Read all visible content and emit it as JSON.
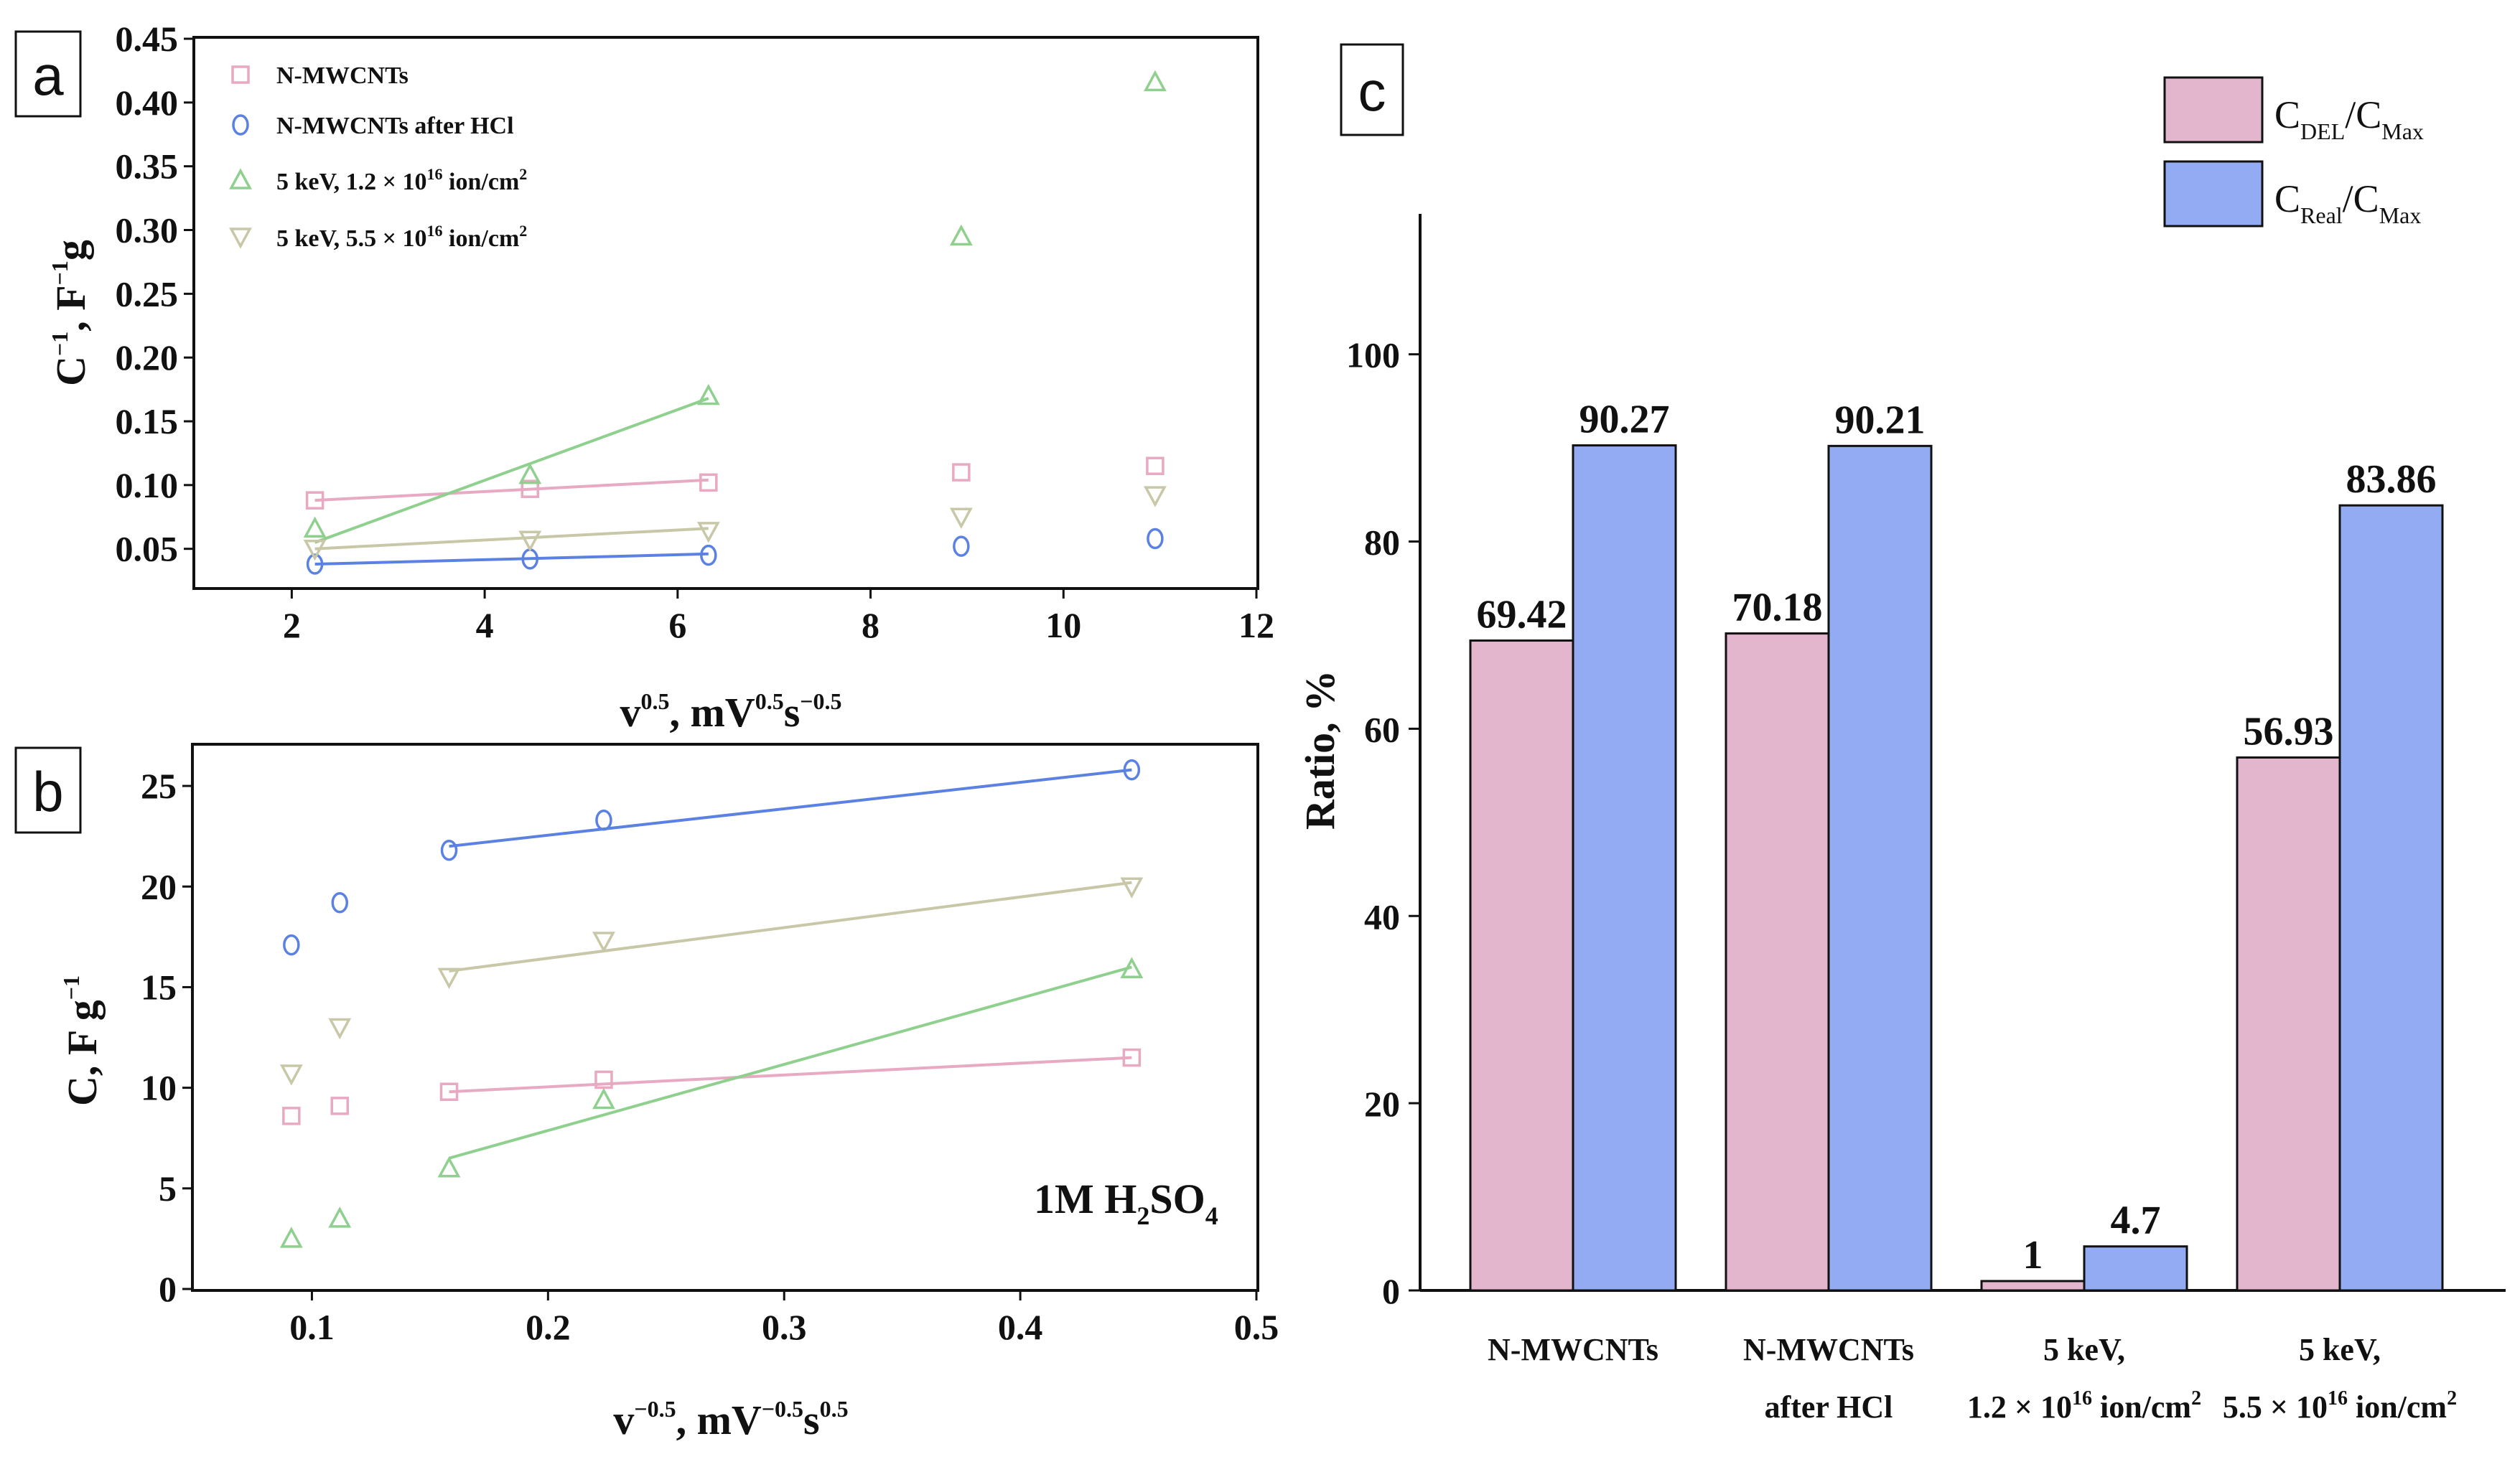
{
  "panels": {
    "a": "a",
    "b": "b",
    "c": "c"
  },
  "colors": {
    "nmwcnt": "#e8a9c2",
    "hcl": "#5b82e3",
    "ion12": "#8fd08f",
    "ion55": "#c8c8a8",
    "bar_del": "#e4b6ce",
    "bar_real": "#92abf2"
  },
  "chart_data": [
    {
      "id": "a",
      "type": "scatter",
      "xlabel": "v^0.5, mV^0.5 s^-0.5",
      "ylabel": "C^-1, F^-1 g",
      "xlim": [
        1,
        12
      ],
      "ylim": [
        0.02,
        0.45
      ],
      "xticks": [
        2,
        4,
        6,
        8,
        10,
        12
      ],
      "xtick_labels": [
        "2",
        "4",
        "6",
        "8",
        "10",
        "12"
      ],
      "yticks": [
        0.05,
        0.1,
        0.15,
        0.2,
        0.25,
        0.3,
        0.35,
        0.4,
        0.45
      ],
      "ytick_labels": [
        "0.05",
        "0.10",
        "0.15",
        "0.20",
        "0.25",
        "0.30",
        "0.35",
        "0.40",
        "0.45"
      ],
      "series": [
        {
          "name": "N-MWCNTs",
          "legend": "N-MWCNTs",
          "color_key": "nmwcnt",
          "marker": "square",
          "points": [
            [
              2.24,
              0.088
            ],
            [
              4.47,
              0.097
            ],
            [
              6.32,
              0.102
            ],
            [
              8.94,
              0.11
            ],
            [
              10.95,
              0.115
            ]
          ],
          "fit": [
            [
              2.24,
              0.088
            ],
            [
              6.32,
              0.104
            ]
          ]
        },
        {
          "name": "N-MWCNTs after HCl",
          "legend": "N-MWCNTs after HCl",
          "color_key": "hcl",
          "marker": "circle",
          "points": [
            [
              2.24,
              0.038
            ],
            [
              4.47,
              0.042
            ],
            [
              6.32,
              0.045
            ],
            [
              8.94,
              0.052
            ],
            [
              10.95,
              0.058
            ]
          ],
          "fit": [
            [
              2.24,
              0.038
            ],
            [
              6.32,
              0.046
            ]
          ]
        },
        {
          "name": "5 keV, 1.2 x 10^16 ion/cm^2",
          "legend": "5 keV, 1.2 × 10",
          "legend_sup": "16",
          "legend_tail": " ion/cm",
          "legend_tail_sup": "2",
          "color_key": "ion12",
          "marker": "triangle-up",
          "points": [
            [
              2.24,
              0.066
            ],
            [
              4.47,
              0.108
            ],
            [
              6.32,
              0.17
            ],
            [
              8.94,
              0.295
            ],
            [
              10.95,
              0.416
            ]
          ],
          "fit": [
            [
              2.24,
              0.055
            ],
            [
              6.32,
              0.168
            ]
          ]
        },
        {
          "name": "5 keV, 5.5 x 10^16 ion/cm^2",
          "legend": "5 keV, 5.5 × 10",
          "legend_sup": "16",
          "legend_tail": " ion/cm",
          "legend_tail_sup": "2",
          "color_key": "ion55",
          "marker": "triangle-down",
          "points": [
            [
              2.24,
              0.05
            ],
            [
              4.47,
              0.057
            ],
            [
              6.32,
              0.064
            ],
            [
              8.94,
              0.075
            ],
            [
              10.95,
              0.092
            ]
          ],
          "fit": [
            [
              2.24,
              0.05
            ],
            [
              6.32,
              0.066
            ]
          ]
        }
      ]
    },
    {
      "id": "b",
      "type": "scatter",
      "xlabel": "v^-0.5, mV^-0.5 s^0.5",
      "ylabel": "C, F g^-1",
      "annotation": "1M H2SO4",
      "xlim": [
        0.05,
        0.5
      ],
      "ylim": [
        0,
        27
      ],
      "xticks": [
        0.1,
        0.2,
        0.3,
        0.4,
        0.5
      ],
      "xtick_labels": [
        "0.1",
        "0.2",
        "0.3",
        "0.4",
        "0.5"
      ],
      "yticks": [
        0,
        5,
        10,
        15,
        20,
        25
      ],
      "ytick_labels": [
        "0",
        "5",
        "10",
        "15",
        "20",
        "25"
      ],
      "series": [
        {
          "name": "N-MWCNTs",
          "color_key": "nmwcnt",
          "marker": "square",
          "points": [
            [
              0.0913,
              8.6
            ],
            [
              0.1118,
              9.1
            ],
            [
              0.1581,
              9.8
            ],
            [
              0.2236,
              10.4
            ],
            [
              0.4472,
              11.5
            ]
          ],
          "fit": [
            [
              0.1581,
              9.8
            ],
            [
              0.4472,
              11.5
            ]
          ]
        },
        {
          "name": "N-MWCNTs after HCl",
          "color_key": "hcl",
          "marker": "circle",
          "points": [
            [
              0.0913,
              17.1
            ],
            [
              0.1118,
              19.2
            ],
            [
              0.1581,
              21.8
            ],
            [
              0.2236,
              23.3
            ],
            [
              0.4472,
              25.8
            ]
          ],
          "fit": [
            [
              0.1581,
              22.0
            ],
            [
              0.4472,
              25.8
            ]
          ]
        },
        {
          "name": "5 keV, 1.2 x 10^16 ion/cm^2",
          "color_key": "ion12",
          "marker": "triangle-up",
          "points": [
            [
              0.0913,
              2.5
            ],
            [
              0.1118,
              3.5
            ],
            [
              0.1581,
              6.0
            ],
            [
              0.2236,
              9.4
            ],
            [
              0.4472,
              15.9
            ]
          ],
          "fit": [
            [
              0.1581,
              6.5
            ],
            [
              0.4472,
              16.0
            ]
          ]
        },
        {
          "name": "5 keV, 5.5 x 10^16 ion/cm^2",
          "color_key": "ion55",
          "marker": "triangle-down",
          "points": [
            [
              0.0913,
              10.7
            ],
            [
              0.1118,
              13.0
            ],
            [
              0.1581,
              15.5
            ],
            [
              0.2236,
              17.3
            ],
            [
              0.4472,
              20.0
            ]
          ],
          "fit": [
            [
              0.1581,
              15.8
            ],
            [
              0.4472,
              20.2
            ]
          ]
        }
      ]
    },
    {
      "id": "c",
      "type": "bar",
      "ylabel": "Ratio, %",
      "ylim": [
        0,
        115
      ],
      "yticks": [
        0,
        20,
        40,
        60,
        80,
        100
      ],
      "ytick_labels": [
        "0",
        "20",
        "40",
        "60",
        "80",
        "100"
      ],
      "categories": [
        {
          "line1": "N-MWCNTs",
          "line2": "",
          "line2_sup": "",
          "line2_tail": "",
          "line2_tail_sup": ""
        },
        {
          "line1": "N-MWCNTs",
          "line2": "after HCl",
          "line2_sup": "",
          "line2_tail": "",
          "line2_tail_sup": ""
        },
        {
          "line1": "5 keV,",
          "line2": "1.2 × 10",
          "line2_sup": "16",
          "line2_tail": " ion/cm",
          "line2_tail_sup": "2"
        },
        {
          "line1": "5 keV,",
          "line2": "5.5 × 10",
          "line2_sup": "16",
          "line2_tail": " ion/cm",
          "line2_tail_sup": "2"
        }
      ],
      "series": [
        {
          "name": "C_DEL/C_Max",
          "legend_main": "C",
          "legend_sub": "DEL",
          "legend_mid": "/C",
          "legend_sub2": "Max",
          "color_key": "bar_del",
          "values": [
            69.42,
            70.18,
            1,
            56.93
          ],
          "labels": [
            "69.42",
            "70.18",
            "1",
            "56.93"
          ]
        },
        {
          "name": "C_Real/C_Max",
          "legend_main": "C",
          "legend_sub": "Real",
          "legend_mid": "/C",
          "legend_sub2": "Max",
          "color_key": "bar_real",
          "values": [
            90.27,
            90.21,
            4.7,
            83.86
          ],
          "labels": [
            "90.27",
            "90.21",
            "4.7",
            "83.86"
          ]
        }
      ]
    }
  ]
}
